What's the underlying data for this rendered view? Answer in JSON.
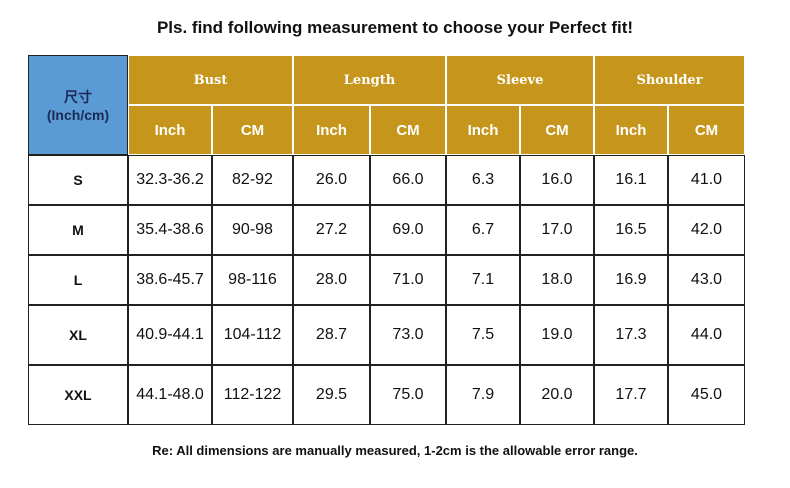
{
  "title": "Pls. find following measurement to choose your Perfect fit!",
  "table": {
    "corner": [
      "尺寸",
      "(Inch/cm)"
    ],
    "groups": [
      "Bust",
      "Length",
      "Sleeve",
      "Shoulder"
    ],
    "subheaders": [
      "Inch",
      "CM",
      "Inch",
      "CM",
      "Inch",
      "CM",
      "Inch",
      "CM"
    ],
    "rows": [
      [
        "S",
        "32.3-36.2",
        "82-92",
        "26.0",
        "66.0",
        "6.3",
        "16.0",
        "16.1",
        "41.0"
      ],
      [
        "M",
        "35.4-38.6",
        "90-98",
        "27.2",
        "69.0",
        "6.7",
        "17.0",
        "16.5",
        "42.0"
      ],
      [
        "L",
        "38.6-45.7",
        "98-116",
        "28.0",
        "71.0",
        "7.1",
        "18.0",
        "16.9",
        "43.0"
      ],
      [
        "XL",
        "40.9-44.1",
        "104-112",
        "28.7",
        "73.0",
        "7.5",
        "19.0",
        "17.3",
        "44.0"
      ],
      [
        "XXL",
        "44.1-48.0",
        "112-122",
        "29.5",
        "75.0",
        "7.9",
        "20.0",
        "17.7",
        "45.0"
      ]
    ]
  },
  "note": "Re: All dimensions are manually measured, 1-2cm is the allowable error range."
}
